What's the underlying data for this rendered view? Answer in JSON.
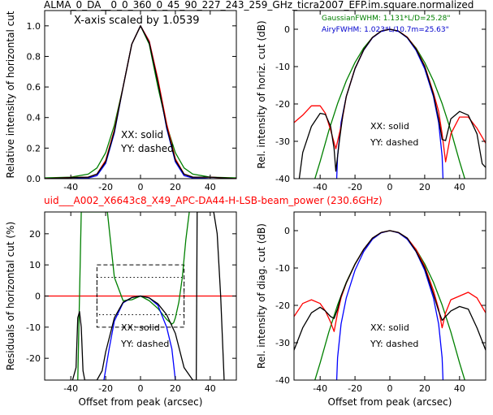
{
  "figure": {
    "title": "ALMA_0_DA__0_0_360_0_45_90_227_243_259_GHz_ticra2007_EFP.im.square.normalized",
    "subtitle": "uid___A002_X6643c8_X49_APC-DA44-H-LSB-beam_power (230.6GHz)",
    "subtitle_color": "#ff0000"
  },
  "chart_data": [
    {
      "id": "p1",
      "type": "line",
      "ylabel": "Relative intensity of horizontal cut",
      "xlabel": "",
      "xlim": [
        -55,
        55
      ],
      "ylim": [
        0,
        1.1
      ],
      "xticks": [
        -40,
        -20,
        0,
        20,
        40
      ],
      "yticks": [
        0.0,
        0.2,
        0.4,
        0.6,
        0.8,
        1.0
      ],
      "ytick_format": "fixed1",
      "annotation_top": "X-axis scaled by 1.0539",
      "annotations": [
        "XX: solid",
        "YY: dashed"
      ],
      "series": [
        {
          "color": "#008000",
          "x": [
            -55,
            -40,
            -30,
            -25,
            -20,
            -15,
            -10,
            -5,
            0,
            5,
            10,
            15,
            20,
            25,
            30,
            40,
            55
          ],
          "y": [
            0.005,
            0.01,
            0.03,
            0.07,
            0.17,
            0.35,
            0.6,
            0.88,
            1.0,
            0.88,
            0.6,
            0.35,
            0.17,
            0.07,
            0.03,
            0.01,
            0.005
          ]
        },
        {
          "color": "#0000ff",
          "x": [
            -55,
            -40,
            -30,
            -25,
            -20,
            -15,
            -10,
            -5,
            0,
            5,
            10,
            15,
            20,
            25,
            30,
            40,
            55
          ],
          "y": [
            0,
            0.0,
            0.005,
            0.02,
            0.1,
            0.3,
            0.6,
            0.88,
            1.0,
            0.9,
            0.64,
            0.33,
            0.11,
            0.02,
            0.005,
            0.0,
            0
          ]
        },
        {
          "color": "#ff0000",
          "x": [
            -55,
            -40,
            -30,
            -25,
            -20,
            -15,
            -10,
            -5,
            0,
            5,
            10,
            15,
            20,
            25,
            30,
            40,
            55
          ],
          "y": [
            0.0,
            0.008,
            0.01,
            0.03,
            0.12,
            0.32,
            0.6,
            0.88,
            1.0,
            0.9,
            0.65,
            0.36,
            0.13,
            0.03,
            0.01,
            0.01,
            0.0
          ]
        },
        {
          "color": "#000000",
          "x": [
            -55,
            -40,
            -30,
            -25,
            -20,
            -15,
            -10,
            -5,
            0,
            5,
            10,
            15,
            20,
            25,
            30,
            40,
            55
          ],
          "y": [
            0.0,
            0.007,
            0.01,
            0.03,
            0.11,
            0.31,
            0.6,
            0.88,
            1.0,
            0.89,
            0.63,
            0.34,
            0.12,
            0.03,
            0.01,
            0.01,
            0.0
          ]
        }
      ]
    },
    {
      "id": "p2",
      "type": "line",
      "ylabel": "Rel. intensity of horiz. cut (dB)",
      "xlabel": "",
      "xlim": [
        -55,
        55
      ],
      "ylim": [
        -40,
        5
      ],
      "xticks": [
        -40,
        -20,
        0,
        20,
        40
      ],
      "yticks": [
        -40,
        -30,
        -20,
        -10,
        0
      ],
      "ytick_format": "int",
      "legend_lines": [
        {
          "text": "GaussianFWHM: 1.131*L/D=25.28\"",
          "color": "#008000"
        },
        {
          "text": "AiryFWHM: 1.023*L/10.7m=25.63\"",
          "color": "#0000cc"
        }
      ],
      "annotations": [
        "XX: solid",
        "YY: dashed"
      ],
      "series": [
        {
          "color": "#008000",
          "x": [
            -43,
            -40,
            -35,
            -30,
            -25,
            -20,
            -15,
            -10,
            -5,
            0,
            5,
            10,
            15,
            20,
            25,
            30,
            35,
            40,
            43
          ],
          "y": [
            -40,
            -35.4,
            -27.1,
            -19.9,
            -13.8,
            -8.9,
            -5.0,
            -2.2,
            -0.55,
            0,
            -0.55,
            -2.2,
            -5.0,
            -8.9,
            -13.8,
            -19.9,
            -27.1,
            -35.4,
            -40
          ]
        },
        {
          "color": "#0000ff",
          "x": [
            -30.5,
            -30,
            -28,
            -25,
            -20,
            -15,
            -10,
            -5,
            0,
            5,
            10,
            15,
            20,
            25,
            28,
            30,
            30.5
          ],
          "y": [
            -40,
            -34,
            -25,
            -18,
            -10.6,
            -5.6,
            -2.3,
            -0.6,
            0,
            -0.6,
            -2.3,
            -5.6,
            -10.6,
            -18,
            -25,
            -34,
            -40
          ]
        },
        {
          "color": "#ff0000",
          "x": [
            -55,
            -50,
            -45,
            -40,
            -37,
            -34,
            -31,
            -28,
            -25,
            -20,
            -15,
            -10,
            -5,
            0,
            5,
            10,
            15,
            20,
            25,
            28,
            30,
            32,
            35,
            40,
            45,
            50,
            55
          ],
          "y": [
            -25,
            -23,
            -20.5,
            -20.5,
            -22.5,
            -27,
            -32,
            -26,
            -18,
            -10.5,
            -5.5,
            -2.2,
            -0.5,
            0,
            -0.5,
            -2.1,
            -5.2,
            -9.8,
            -17,
            -22,
            -28,
            -35.5,
            -28,
            -23.5,
            -23.5,
            -26.5,
            -30.5
          ]
        },
        {
          "color": "#000000",
          "x": [
            -52,
            -50,
            -45,
            -40,
            -37,
            -34,
            -32,
            -31,
            -29,
            -27,
            -25,
            -20,
            -15,
            -10,
            -5,
            0,
            5,
            10,
            15,
            20,
            25,
            28,
            30,
            32,
            35,
            40,
            45,
            50,
            53,
            55
          ],
          "y": [
            -40,
            -33,
            -26,
            -22.5,
            -22.8,
            -26,
            -32,
            -38,
            -30,
            -23,
            -18,
            -10.5,
            -5.5,
            -2.2,
            -0.5,
            0,
            -0.5,
            -2.2,
            -5.3,
            -10,
            -17.5,
            -24,
            -29.5,
            -29.8,
            -24,
            -22,
            -23,
            -28,
            -36,
            -37
          ]
        }
      ]
    },
    {
      "id": "p3",
      "type": "line",
      "ylabel": "Residuals of horizontal cut (%)",
      "xlabel": "Offset from peak (arcsec)",
      "xlim": [
        -55,
        55
      ],
      "ylim": [
        -27,
        27
      ],
      "xticks": [
        -40,
        -20,
        0,
        20,
        40
      ],
      "yticks": [
        -20,
        -10,
        0,
        10,
        20
      ],
      "ytick_format": "int",
      "annotations": [
        "XX: solid",
        "YY: dashed"
      ],
      "zero_line_color": "#ff0000",
      "boxes": [
        {
          "x": [
            -25,
            25
          ],
          "y": [
            -10,
            10
          ],
          "style": "dashed"
        },
        {
          "x": [
            -25,
            25
          ],
          "y": [
            -6,
            6
          ],
          "style": "dotted"
        }
      ],
      "series": [
        {
          "color": "#008000",
          "x": [
            -36,
            -35,
            -34,
            -32,
            -30,
            -27,
            -25,
            -22,
            -19,
            -15,
            -10,
            -5,
            0,
            5,
            10,
            15,
            18,
            19,
            20,
            22,
            24,
            26,
            28
          ],
          "y": [
            -27,
            0,
            27,
            27,
            27,
            27,
            27,
            27,
            27,
            6,
            -1.5,
            -1.2,
            0,
            -1.5,
            -4,
            -7.5,
            -9,
            -8.6,
            -7,
            -2,
            6,
            18,
            27
          ]
        },
        {
          "color": "#0000ff",
          "x": [
            -21,
            -18,
            -15,
            -10,
            -5,
            0,
            5,
            10,
            15,
            18,
            20
          ],
          "y": [
            -27,
            -17,
            -8,
            -2.2,
            -0.5,
            0,
            -0.6,
            -3,
            -10,
            -17,
            -27
          ]
        },
        {
          "color": "#000000",
          "x": [
            -39,
            -37,
            -36,
            -35,
            -34,
            -33,
            -32,
            -30,
            -28,
            -25,
            -22,
            -20,
            -15,
            -10,
            -5,
            0,
            5,
            10,
            15,
            20,
            25,
            30,
            32,
            32.5,
            33,
            34,
            36,
            38,
            40,
            42,
            44,
            46,
            48
          ],
          "y": [
            -27,
            -23,
            -7,
            -5,
            -10,
            -24,
            -27,
            -27,
            -27,
            -27,
            -24,
            -18,
            -7,
            -2,
            -0.5,
            0,
            -0.6,
            -2.5,
            -6,
            -12,
            -23,
            -27,
            -27,
            27,
            27,
            27,
            27,
            27,
            27,
            27,
            20,
            0,
            -27
          ]
        }
      ]
    },
    {
      "id": "p4",
      "type": "line",
      "ylabel": "Rel. intensity of diag. cut (dB)",
      "xlabel": "Offset from peak (arcsec)",
      "xlim": [
        -55,
        55
      ],
      "ylim": [
        -40,
        5
      ],
      "xticks": [
        -40,
        -20,
        0,
        20,
        40
      ],
      "yticks": [
        -40,
        -30,
        -20,
        -10,
        0
      ],
      "ytick_format": "int",
      "annotations": [
        "XX: solid",
        "YY: dashed"
      ],
      "series": [
        {
          "color": "#008000",
          "x": [
            -43,
            -40,
            -35,
            -30,
            -25,
            -20,
            -15,
            -10,
            -5,
            0,
            5,
            10,
            15,
            20,
            25,
            30,
            35,
            40,
            43
          ],
          "y": [
            -40,
            -35.4,
            -27.1,
            -19.9,
            -13.8,
            -8.9,
            -5.0,
            -2.2,
            -0.55,
            0,
            -0.55,
            -2.2,
            -5.0,
            -8.9,
            -13.8,
            -19.9,
            -27.1,
            -35.4,
            -40
          ]
        },
        {
          "color": "#0000ff",
          "x": [
            -30.5,
            -30,
            -28,
            -25,
            -20,
            -15,
            -10,
            -5,
            0,
            5,
            10,
            15,
            20,
            25,
            28,
            30,
            30.5
          ],
          "y": [
            -40,
            -34,
            -25,
            -18,
            -10.6,
            -5.6,
            -2.3,
            -0.6,
            0,
            -0.6,
            -2.3,
            -5.6,
            -10.6,
            -18,
            -25,
            -34,
            -40
          ]
        },
        {
          "color": "#ff0000",
          "x": [
            -55,
            -50,
            -45,
            -40,
            -37,
            -34,
            -32,
            -30,
            -28,
            -25,
            -20,
            -15,
            -10,
            -5,
            0,
            5,
            10,
            15,
            20,
            25,
            28,
            30,
            32,
            35,
            40,
            45,
            50,
            55
          ],
          "y": [
            -23,
            -19.5,
            -18.5,
            -19.5,
            -21.5,
            -24.5,
            -27,
            -22,
            -18,
            -14,
            -9,
            -5,
            -2,
            -0.5,
            0,
            -0.5,
            -2,
            -5,
            -9.5,
            -16,
            -21,
            -26,
            -22,
            -18.5,
            -17.5,
            -16.5,
            -18,
            -22
          ]
        },
        {
          "color": "#000000",
          "x": [
            -55,
            -50,
            -45,
            -40,
            -37,
            -34,
            -32,
            -30,
            -28,
            -25,
            -20,
            -15,
            -10,
            -5,
            0,
            5,
            10,
            15,
            20,
            25,
            28,
            30,
            32,
            35,
            40,
            45,
            50,
            55
          ],
          "y": [
            -32,
            -26,
            -22,
            -20.5,
            -21.5,
            -23,
            -23.5,
            -21,
            -17.5,
            -14,
            -9,
            -5,
            -2,
            -0.5,
            0,
            -0.5,
            -2,
            -5.5,
            -10,
            -17,
            -21.5,
            -24,
            -23,
            -21.5,
            -20.3,
            -21,
            -26,
            -32
          ]
        }
      ]
    }
  ]
}
